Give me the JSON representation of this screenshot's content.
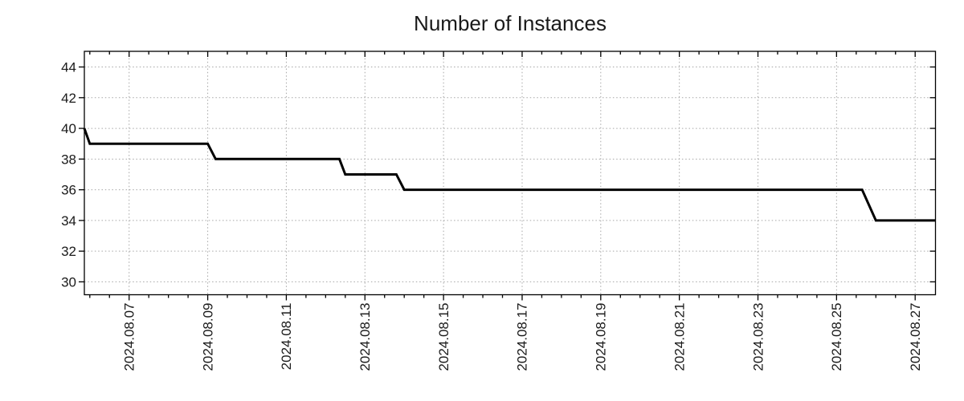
{
  "title": "Number of Instances",
  "colors": {
    "line": "#000000",
    "grid": "#a6a6a6",
    "axis": "#000000",
    "text": "#1a1a1a",
    "background": "#ffffff"
  },
  "chart_data": {
    "type": "line",
    "line_style": "step",
    "title": "Number of Instances",
    "grid": "dotted",
    "legend": "none",
    "x_axis": {
      "label_format": "YYYY.MM.DD",
      "major_tick_labels": [
        "2024.08.07",
        "2024.08.09",
        "2024.08.11",
        "2024.08.13",
        "2024.08.15",
        "2024.08.17",
        "2024.08.19",
        "2024.08.21",
        "2024.08.23",
        "2024.08.25",
        "2024.08.27"
      ],
      "major_tick_days": [
        1,
        3,
        5,
        7,
        9,
        11,
        13,
        15,
        17,
        19,
        21
      ],
      "minor_tick_interval_days": 0.5,
      "epoch": "2024-08-06 00:00",
      "domain_days": [
        -0.139,
        21.517
      ]
    },
    "y_axis": {
      "major_ticks": [
        30,
        32,
        34,
        36,
        38,
        40,
        42,
        44
      ],
      "range": [
        29.16,
        45.02
      ]
    },
    "series": [
      {
        "name": "Number of Instances",
        "color": "#000000",
        "points": [
          [
            "2024-08-05 20:40",
            40
          ],
          [
            "2024-08-06 00:00",
            39
          ],
          [
            "2024-08-09 00:00",
            39
          ],
          [
            "2024-08-09 04:48",
            38
          ],
          [
            "2024-08-12 08:24",
            38
          ],
          [
            "2024-08-12 12:00",
            37
          ],
          [
            "2024-08-13 19:12",
            37
          ],
          [
            "2024-08-14 00:00",
            36
          ],
          [
            "2024-08-25 15:36",
            36
          ],
          [
            "2024-08-26 00:00",
            34
          ],
          [
            "2024-08-27 12:24",
            34
          ]
        ]
      }
    ]
  }
}
